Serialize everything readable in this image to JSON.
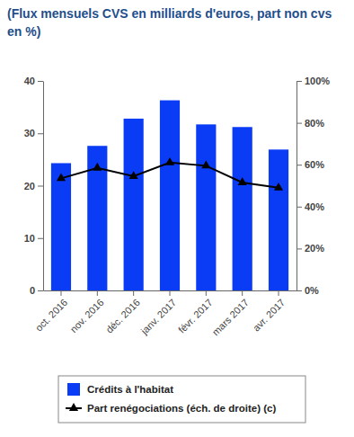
{
  "chart_data": {
    "type": "bar",
    "title": "(Flux mensuels CVS en milliards d'euros, part non cvs en %)",
    "categories": [
      "oct. 2016",
      "nov. 2016",
      "déc. 2016",
      "janv. 2017",
      "févr. 2017",
      "mars 2017",
      "avr. 2017"
    ],
    "series": [
      {
        "name": "Crédits à l'habitat",
        "type": "bar",
        "color": "#0a3cf5",
        "values": [
          24.3,
          27.6,
          32.8,
          36.3,
          31.7,
          31.2,
          26.9
        ]
      },
      {
        "name": "Part renégociations (éch. de droite) (c)",
        "type": "line",
        "axis": "y2",
        "color": "#000000",
        "marker": "triangle",
        "values": [
          53.5,
          58.5,
          54.5,
          61,
          59.5,
          51.5,
          49
        ]
      }
    ],
    "ylim": [
      0,
      40
    ],
    "yticks": [
      0,
      10,
      20,
      30,
      40
    ],
    "y2lim": [
      0,
      100
    ],
    "y2ticks": [
      {
        "value": 0,
        "label": "0%"
      },
      {
        "value": 20,
        "label": "20%"
      },
      {
        "value": 40,
        "label": "40%"
      },
      {
        "value": 60,
        "label": "60%"
      },
      {
        "value": 80,
        "label": "80%"
      },
      {
        "value": 100,
        "label": "100%"
      }
    ],
    "grid": false,
    "legend": "bottom"
  }
}
